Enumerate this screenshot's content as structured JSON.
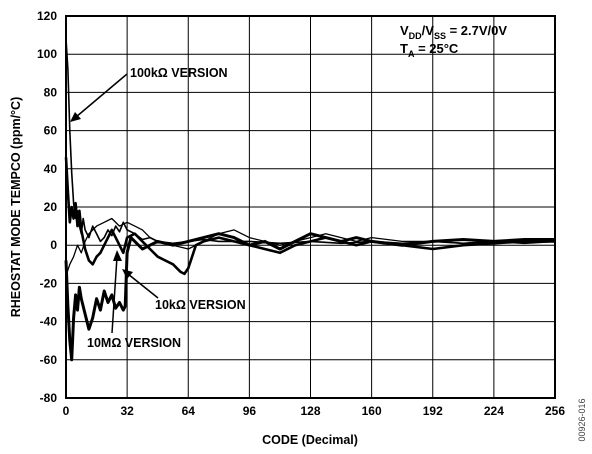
{
  "chart_data": {
    "type": "line",
    "title": "",
    "xlabel": "CODE (Decimal)",
    "ylabel": "RHEOSTAT MODE TEMPCO (ppm/°C)",
    "xlim": [
      0,
      256
    ],
    "ylim": [
      -80,
      120
    ],
    "x_ticks": [
      0,
      32,
      64,
      96,
      128,
      160,
      192,
      224,
      256
    ],
    "y_ticks": [
      -80,
      -60,
      -40,
      -20,
      0,
      20,
      40,
      60,
      80,
      100,
      120
    ],
    "grid": true,
    "conditions": {
      "vdd_main": "V",
      "vdd_sub1": "DD",
      "vdd_sep": "/V",
      "vdd_sub2": "SS",
      "vdd_value": " = 2.7V/0V",
      "ta_main": "T",
      "ta_sub": "A",
      "ta_value": " = 25°C"
    },
    "annotations": [
      "100kΩ VERSION",
      "10kΩ VERSION",
      "10MΩ VERSION"
    ],
    "side_label": "00926-016",
    "series": [
      {
        "label": "100kΩ VERSION",
        "points": [
          [
            0,
            108
          ],
          [
            1,
            92
          ],
          [
            2,
            60
          ],
          [
            3,
            38
          ],
          [
            4,
            22
          ],
          [
            5,
            14
          ],
          [
            6,
            18
          ],
          [
            7,
            10
          ],
          [
            8,
            6
          ],
          [
            9,
            14
          ],
          [
            10,
            8
          ],
          [
            12,
            4
          ],
          [
            14,
            10
          ],
          [
            16,
            6
          ],
          [
            18,
            2
          ],
          [
            20,
            4
          ],
          [
            22,
            8
          ],
          [
            24,
            5
          ],
          [
            26,
            10
          ],
          [
            28,
            7
          ],
          [
            30,
            12
          ],
          [
            32,
            8
          ],
          [
            36,
            6
          ],
          [
            40,
            3
          ],
          [
            44,
            4
          ],
          [
            48,
            2
          ],
          [
            56,
            1
          ],
          [
            64,
            2
          ],
          [
            72,
            3
          ],
          [
            80,
            2
          ],
          [
            96,
            2
          ],
          [
            112,
            1
          ],
          [
            128,
            2
          ],
          [
            144,
            1
          ],
          [
            160,
            2
          ],
          [
            176,
            1
          ],
          [
            192,
            2
          ],
          [
            208,
            1
          ],
          [
            224,
            2
          ],
          [
            240,
            1
          ],
          [
            256,
            2
          ]
        ]
      },
      {
        "label": "10kΩ VERSION",
        "points": [
          [
            0,
            46
          ],
          [
            1,
            28
          ],
          [
            2,
            12
          ],
          [
            3,
            20
          ],
          [
            4,
            14
          ],
          [
            5,
            22
          ],
          [
            6,
            10
          ],
          [
            7,
            18
          ],
          [
            8,
            8
          ],
          [
            10,
            -2
          ],
          [
            12,
            -8
          ],
          [
            14,
            -10
          ],
          [
            16,
            -6
          ],
          [
            18,
            -4
          ],
          [
            20,
            0
          ],
          [
            22,
            4
          ],
          [
            24,
            8
          ],
          [
            26,
            4
          ],
          [
            28,
            0
          ],
          [
            30,
            -4
          ],
          [
            32,
            4
          ],
          [
            36,
            6
          ],
          [
            40,
            2
          ],
          [
            44,
            -2
          ],
          [
            48,
            -6
          ],
          [
            52,
            -8
          ],
          [
            56,
            -10
          ],
          [
            60,
            -14
          ],
          [
            62,
            -15
          ],
          [
            64,
            -12
          ],
          [
            66,
            -6
          ],
          [
            68,
            0
          ],
          [
            72,
            2
          ],
          [
            80,
            4
          ],
          [
            88,
            2
          ],
          [
            96,
            0
          ],
          [
            104,
            -2
          ],
          [
            112,
            -4
          ],
          [
            120,
            0
          ],
          [
            128,
            2
          ],
          [
            136,
            4
          ],
          [
            144,
            2
          ],
          [
            152,
            0
          ],
          [
            160,
            2
          ],
          [
            176,
            0
          ],
          [
            192,
            -2
          ],
          [
            208,
            0
          ],
          [
            224,
            1
          ],
          [
            240,
            2
          ],
          [
            256,
            2
          ]
        ]
      },
      {
        "label": "10MΩ VERSION",
        "points": [
          [
            0,
            -8
          ],
          [
            1,
            -32
          ],
          [
            2,
            -50
          ],
          [
            3,
            -60
          ],
          [
            4,
            -38
          ],
          [
            5,
            -26
          ],
          [
            6,
            -34
          ],
          [
            7,
            -22
          ],
          [
            8,
            -28
          ],
          [
            10,
            -36
          ],
          [
            12,
            -44
          ],
          [
            14,
            -38
          ],
          [
            16,
            -28
          ],
          [
            18,
            -34
          ],
          [
            20,
            -24
          ],
          [
            22,
            -30
          ],
          [
            24,
            -26
          ],
          [
            26,
            -33
          ],
          [
            28,
            -30
          ],
          [
            30,
            -34
          ],
          [
            31,
            -32
          ],
          [
            32,
            -4
          ],
          [
            34,
            4
          ],
          [
            36,
            2
          ],
          [
            40,
            -2
          ],
          [
            44,
            0
          ],
          [
            48,
            2
          ],
          [
            56,
            0
          ],
          [
            64,
            2
          ],
          [
            72,
            4
          ],
          [
            80,
            6
          ],
          [
            88,
            4
          ],
          [
            96,
            0
          ],
          [
            104,
            2
          ],
          [
            112,
            -2
          ],
          [
            120,
            2
          ],
          [
            128,
            6
          ],
          [
            136,
            4
          ],
          [
            144,
            2
          ],
          [
            152,
            4
          ],
          [
            160,
            2
          ],
          [
            176,
            0
          ],
          [
            192,
            2
          ],
          [
            208,
            3
          ],
          [
            224,
            2
          ],
          [
            240,
            3
          ],
          [
            256,
            3
          ]
        ]
      },
      {
        "label": "",
        "points": [
          [
            0,
            -16
          ],
          [
            2,
            -10
          ],
          [
            4,
            -6
          ],
          [
            6,
            0
          ],
          [
            8,
            -4
          ],
          [
            10,
            2
          ],
          [
            12,
            6
          ],
          [
            16,
            10
          ],
          [
            20,
            12
          ],
          [
            24,
            14
          ],
          [
            28,
            10
          ],
          [
            32,
            12
          ],
          [
            36,
            10
          ],
          [
            40,
            8
          ],
          [
            44,
            4
          ],
          [
            48,
            2
          ],
          [
            56,
            0
          ],
          [
            64,
            -2
          ],
          [
            72,
            2
          ],
          [
            80,
            6
          ],
          [
            88,
            8
          ],
          [
            96,
            4
          ],
          [
            104,
            2
          ],
          [
            112,
            0
          ],
          [
            120,
            2
          ],
          [
            128,
            4
          ],
          [
            136,
            6
          ],
          [
            144,
            4
          ],
          [
            152,
            2
          ],
          [
            160,
            4
          ],
          [
            176,
            2
          ],
          [
            192,
            2
          ],
          [
            208,
            1
          ],
          [
            224,
            2
          ],
          [
            240,
            2
          ],
          [
            256,
            2
          ]
        ]
      }
    ]
  }
}
